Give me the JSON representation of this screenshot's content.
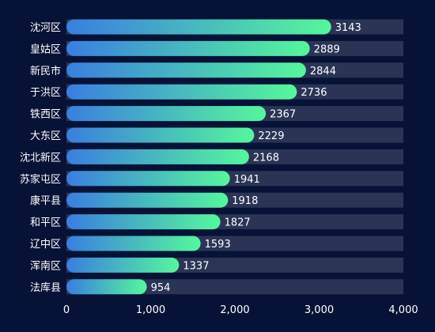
{
  "colors": {
    "background": "#071336",
    "track": "#2a3556",
    "bar_start": "#3a7ee0",
    "bar_end": "#55f79c",
    "text": "#ffffff"
  },
  "chart_data": {
    "type": "bar",
    "orientation": "horizontal",
    "categories": [
      "沈河区",
      "皇姑区",
      "新民市",
      "于洪区",
      "铁西区",
      "大东区",
      "沈北新区",
      "苏家屯区",
      "康平县",
      "和平区",
      "辽中区",
      "浑南区",
      "法库县"
    ],
    "values": [
      3143,
      2889,
      2844,
      2736,
      2367,
      2229,
      2168,
      1941,
      1918,
      1827,
      1593,
      1337,
      954
    ],
    "xlim": [
      0,
      4000
    ],
    "xticks": [
      "0",
      "1,000",
      "2,000",
      "3,000",
      "4,000"
    ],
    "grid": false,
    "title": "",
    "xlabel": "",
    "ylabel": ""
  }
}
